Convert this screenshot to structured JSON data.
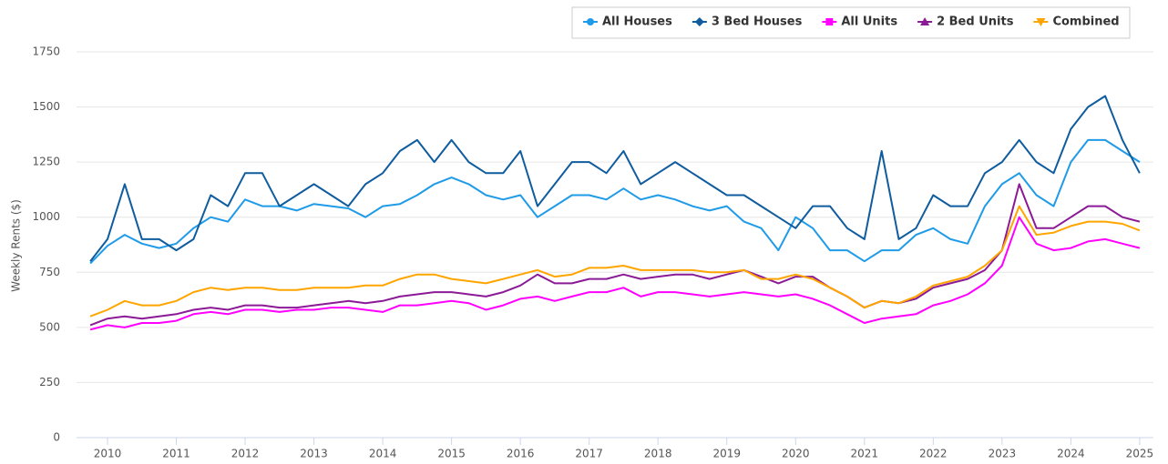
{
  "chart_data": {
    "type": "line",
    "y_label": "Weekly Rents ($)",
    "x": [
      2009.75,
      2010,
      2010.25,
      2010.5,
      2010.75,
      2011,
      2011.25,
      2011.5,
      2011.75,
      2012,
      2012.25,
      2012.5,
      2012.75,
      2013,
      2013.25,
      2013.5,
      2013.75,
      2014,
      2014.25,
      2014.5,
      2014.75,
      2015,
      2015.25,
      2015.5,
      2015.75,
      2016,
      2016.25,
      2016.5,
      2016.75,
      2017,
      2017.25,
      2017.5,
      2017.75,
      2018,
      2018.25,
      2018.5,
      2018.75,
      2019,
      2019.25,
      2019.5,
      2019.75,
      2020,
      2020.25,
      2020.5,
      2020.75,
      2021,
      2021.25,
      2021.5,
      2021.75,
      2022,
      2022.25,
      2022.5,
      2022.75,
      2023,
      2023.25,
      2023.5,
      2023.75,
      2024,
      2024.25,
      2024.5,
      2024.75,
      2025
    ],
    "series": [
      {
        "name": "All Houses",
        "color": "#1f9be8",
        "values": [
          790,
          870,
          920,
          880,
          860,
          880,
          950,
          1000,
          980,
          1080,
          1050,
          1050,
          1030,
          1060,
          1050,
          1040,
          1000,
          1050,
          1060,
          1100,
          1150,
          1180,
          1150,
          1100,
          1080,
          1100,
          1000,
          1050,
          1100,
          1100,
          1080,
          1130,
          1080,
          1100,
          1080,
          1050,
          1030,
          1050,
          980,
          950,
          850,
          1000,
          950,
          850,
          850,
          800,
          850,
          850,
          920,
          950,
          900,
          880,
          1050,
          1150,
          1200,
          1100,
          1050,
          1250,
          1350,
          1350,
          1300,
          1250
        ]
      },
      {
        "name": "3 Bed Houses",
        "color": "#0f5c9e",
        "values": [
          800,
          900,
          1150,
          900,
          900,
          850,
          900,
          1100,
          1050,
          1200,
          1200,
          1050,
          1100,
          1150,
          1100,
          1050,
          1150,
          1200,
          1300,
          1350,
          1250,
          1350,
          1250,
          1200,
          1200,
          1300,
          1050,
          1150,
          1250,
          1250,
          1200,
          1300,
          1150,
          1200,
          1250,
          1200,
          1150,
          1100,
          1100,
          1050,
          1000,
          950,
          1050,
          1050,
          950,
          900,
          1300,
          900,
          950,
          1100,
          1050,
          1050,
          1200,
          1250,
          1350,
          1250,
          1200,
          1400,
          1500,
          1550,
          1350,
          1200
        ]
      },
      {
        "name": "All Units",
        "color": "#ff00ff",
        "values": [
          490,
          510,
          500,
          520,
          520,
          530,
          560,
          570,
          560,
          580,
          580,
          570,
          580,
          580,
          590,
          590,
          580,
          570,
          600,
          600,
          610,
          620,
          610,
          580,
          600,
          630,
          640,
          620,
          640,
          660,
          660,
          680,
          640,
          660,
          660,
          650,
          640,
          650,
          660,
          650,
          640,
          650,
          630,
          600,
          560,
          520,
          540,
          550,
          560,
          600,
          620,
          650,
          700,
          780,
          1000,
          880,
          850,
          860,
          890,
          900,
          880,
          860
        ]
      },
      {
        "name": "2 Bed Units",
        "color": "#8b1a96",
        "values": [
          510,
          540,
          550,
          540,
          550,
          560,
          580,
          590,
          580,
          600,
          600,
          590,
          590,
          600,
          610,
          620,
          610,
          620,
          640,
          650,
          660,
          660,
          650,
          640,
          660,
          690,
          740,
          700,
          700,
          720,
          720,
          740,
          720,
          730,
          740,
          740,
          720,
          740,
          760,
          730,
          700,
          730,
          730,
          680,
          640,
          590,
          620,
          610,
          630,
          680,
          700,
          720,
          760,
          850,
          1150,
          950,
          950,
          1000,
          1050,
          1050,
          1000,
          980
        ]
      },
      {
        "name": "Combined",
        "color": "#ffa500",
        "values": [
          550,
          580,
          620,
          600,
          600,
          620,
          660,
          680,
          670,
          680,
          680,
          670,
          670,
          680,
          680,
          680,
          690,
          690,
          720,
          740,
          740,
          720,
          710,
          700,
          720,
          740,
          760,
          730,
          740,
          770,
          770,
          780,
          760,
          760,
          760,
          760,
          750,
          750,
          760,
          720,
          720,
          740,
          720,
          680,
          640,
          590,
          620,
          610,
          640,
          690,
          710,
          730,
          780,
          850,
          1050,
          920,
          930,
          960,
          980,
          980,
          970,
          940
        ]
      }
    ],
    "xlim": [
      2009.55,
      2025.2
    ],
    "xticks": [
      2010,
      2011,
      2012,
      2013,
      2014,
      2015,
      2016,
      2017,
      2018,
      2019,
      2020,
      2021,
      2022,
      2023,
      2024,
      2025
    ],
    "ylim": [
      0,
      1750
    ],
    "yticks": [
      0,
      250,
      500,
      750,
      1000,
      1250,
      1500,
      1750
    ],
    "grid": true,
    "legend": "top-right"
  }
}
